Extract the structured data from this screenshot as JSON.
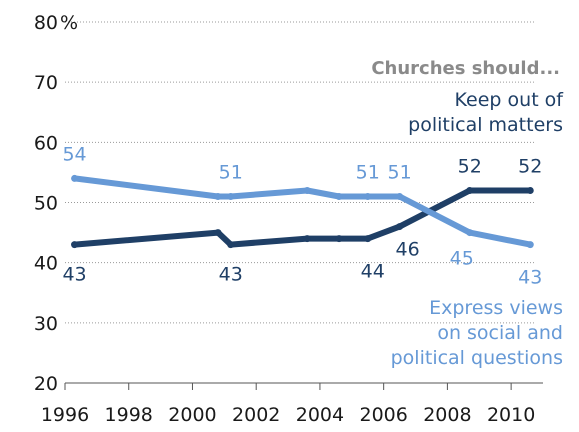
{
  "chart_data": {
    "type": "line",
    "heading": "Churches should...",
    "y_unit": "%",
    "ylim": [
      20,
      80
    ],
    "yticks": [
      20,
      30,
      40,
      50,
      60,
      70,
      80
    ],
    "xlim": [
      1996,
      2011
    ],
    "xticks": [
      1996,
      1998,
      2000,
      2002,
      2004,
      2006,
      2008,
      2010
    ],
    "grid": true,
    "series": [
      {
        "name": "Keep out of political matters",
        "name_lines": [
          "Keep out of",
          "political matters"
        ],
        "color": "#1f3f66",
        "points": [
          [
            1996.3,
            43
          ],
          [
            2000.8,
            45
          ],
          [
            2001.2,
            43
          ],
          [
            2003.6,
            44
          ],
          [
            2004.6,
            44
          ],
          [
            2005.5,
            44
          ],
          [
            2006.5,
            46
          ],
          [
            2008.7,
            52
          ],
          [
            2010.6,
            52
          ]
        ],
        "labels": [
          {
            "text": "43",
            "i": 0
          },
          {
            "text": "43",
            "i": 2
          },
          {
            "text": "44",
            "i": 5
          },
          {
            "text": "46",
            "i": 6
          },
          {
            "text": "52",
            "i": 7
          },
          {
            "text": "52",
            "i": 8
          }
        ]
      },
      {
        "name": "Express views on social and political questions",
        "name_lines": [
          "Express views",
          "on social and",
          "political questions"
        ],
        "color": "#6699d6",
        "points": [
          [
            1996.3,
            54
          ],
          [
            2000.8,
            51
          ],
          [
            2001.2,
            51
          ],
          [
            2003.6,
            52
          ],
          [
            2004.6,
            51
          ],
          [
            2005.5,
            51
          ],
          [
            2006.5,
            51
          ],
          [
            2008.7,
            45
          ],
          [
            2010.6,
            43
          ]
        ],
        "labels": [
          {
            "text": "54",
            "i": 0
          },
          {
            "text": "51",
            "i": 2
          },
          {
            "text": "51",
            "i": 5
          },
          {
            "text": "51",
            "i": 6
          },
          {
            "text": "45",
            "i": 7
          },
          {
            "text": "43",
            "i": 8
          }
        ]
      }
    ]
  }
}
